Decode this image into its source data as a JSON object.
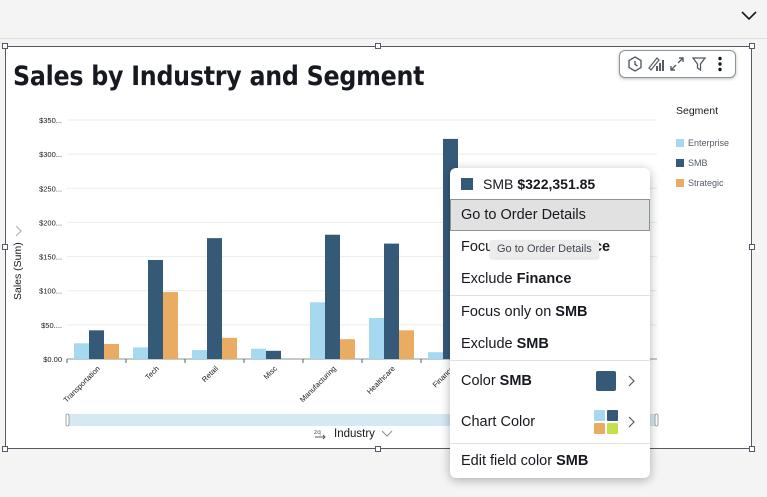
{
  "visual": {
    "title": "Sales by Industry and Segment",
    "toolbar": {
      "icons": [
        "insights-icon",
        "format-visual-icon",
        "expand-icon",
        "filter-icon",
        "more-options-icon"
      ]
    }
  },
  "legend": {
    "title": "Segment",
    "items": [
      {
        "label": "Enterprise",
        "color": "#a6d9ef"
      },
      {
        "label": "SMB",
        "color": "#355a78"
      },
      {
        "label": "Strategic",
        "color": "#eaac62"
      }
    ]
  },
  "chart_data": {
    "type": "bar",
    "title": "Sales by Industry and Segment",
    "xlabel": "Industry",
    "ylabel": "Sales (Sum)",
    "ylim": [
      0,
      350
    ],
    "y_unit": "thousands USD",
    "y_ticks": [
      "$0.00",
      "$50....",
      "$100...",
      "$150...",
      "$200...",
      "$250...",
      "$300...",
      "$350..."
    ],
    "y_tick_values": [
      0,
      50,
      100,
      150,
      200,
      250,
      300,
      350
    ],
    "grid": true,
    "legend_position": "right",
    "categories": [
      "Transportation",
      "Tech",
      "Retail",
      "Misc",
      "Manufacturing",
      "Healthcare",
      "Finance"
    ],
    "series": [
      {
        "name": "Enterprise",
        "color": "#a6d9ef",
        "values": [
          23,
          17,
          13,
          15,
          83,
          60,
          10
        ]
      },
      {
        "name": "SMB",
        "color": "#355a78",
        "values": [
          42,
          145,
          177,
          12,
          182,
          169,
          322.35
        ]
      },
      {
        "name": "Strategic",
        "color": "#eaac62",
        "values": [
          22,
          98,
          31,
          null,
          29,
          42,
          null
        ]
      }
    ]
  },
  "context_menu": {
    "header_series": "SMB",
    "header_value": "$322,351.85",
    "items": [
      {
        "label": "Go to Order Details",
        "bold": ""
      },
      {
        "label": "Focus only on",
        "bold": "Finance"
      },
      {
        "label": "Exclude",
        "bold": "Finance"
      },
      {
        "label": "Focus only on",
        "bold": "SMB"
      },
      {
        "label": "Exclude",
        "bold": "SMB"
      },
      {
        "label": "Color",
        "bold": "SMB"
      },
      {
        "label": "Chart Color",
        "bold": ""
      },
      {
        "label": "Edit field color",
        "bold": "SMB"
      }
    ],
    "color_swatch": "#355a78",
    "chart_palette": [
      "#a6d9ef",
      "#355a78",
      "#eaac62",
      "#c5e04a"
    ]
  },
  "tooltip": "Go to Order Details"
}
